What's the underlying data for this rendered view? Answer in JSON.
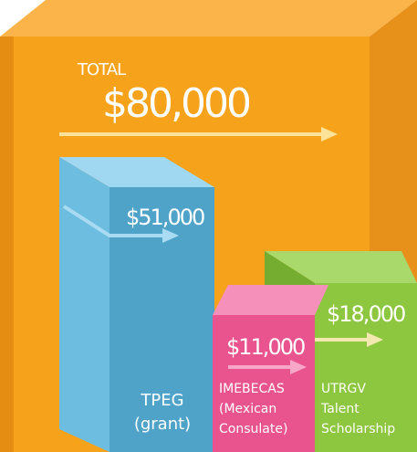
{
  "total": {
    "label": "TOTAL",
    "amount": "$80,000"
  },
  "blocks": [
    {
      "amount": "$51,000",
      "label": [
        "TPEG",
        "(grant)"
      ]
    },
    {
      "amount": "$11,000",
      "label": [
        "IMEBECAS",
        "(Mexican",
        "Consulate)"
      ]
    },
    {
      "amount": "$18,000",
      "label": [
        "UTRGV",
        "Talent",
        "Scholarship"
      ]
    }
  ]
}
